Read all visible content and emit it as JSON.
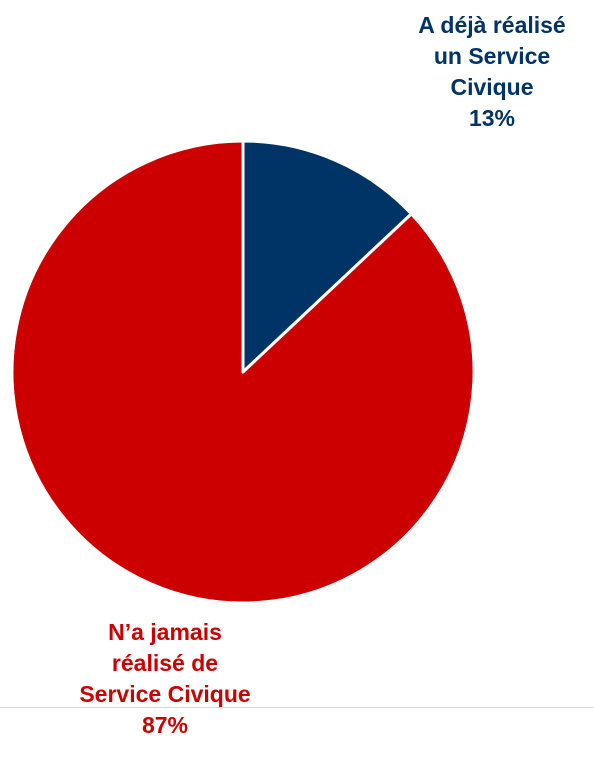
{
  "chart_data": {
    "type": "pie",
    "title": "",
    "slices": [
      {
        "label_lines": [
          "A déjà réalisé",
          "un Service",
          "Civique"
        ],
        "value_label": "13%",
        "value": 13,
        "color": "#003366"
      },
      {
        "label_lines": [
          "N’a jamais",
          "réalisé de",
          "Service Civique"
        ],
        "value_label": "87%",
        "value": 87,
        "color": "#cc0000"
      }
    ],
    "start_angle_deg": 0,
    "direction": "clockwise",
    "slice_border_color": "#ffffff"
  }
}
